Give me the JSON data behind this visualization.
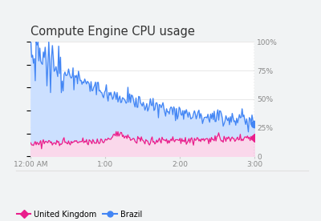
{
  "title": "Compute Engine CPU usage",
  "title_fontsize": 10.5,
  "x_ticks": [
    "12:00 AM",
    "1:00",
    "2:00",
    "3:00"
  ],
  "y_ticks_right": [
    "0",
    "25%",
    "50%",
    "75%",
    "100%"
  ],
  "y_vals_right": [
    0,
    25,
    50,
    75,
    100
  ],
  "brazil_color": "#4285F4",
  "brazil_fill": "#cce0ff",
  "uk_color": "#E91E8C",
  "uk_fill": "#fad8eb",
  "outer_background": "#f1f3f4",
  "card_background": "#ffffff",
  "legend_uk": "United Kingdom",
  "legend_brazil": "Brazil",
  "dotted_line_color": "#aaaaaa",
  "axis_label_color": "#888888",
  "grid_color": "#e8e8e8",
  "separator_color": "#e0e0e0"
}
